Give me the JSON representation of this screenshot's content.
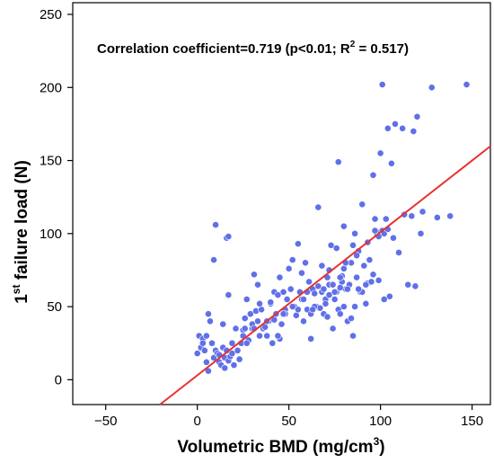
{
  "chart_data": {
    "type": "scatter",
    "annotation": {
      "prefix": "Correlation coefficient=0.719 (p<0.01; R",
      "sup": "2",
      "suffix": " = 0.517)"
    },
    "xlabel": {
      "prefix": "Volumetric BMD (mg/cm",
      "sup": "3",
      "suffix": ")"
    },
    "ylabel": {
      "prefix": "1",
      "sup": "st",
      "suffix": " failure load (N)"
    },
    "xlim": [
      -68,
      160
    ],
    "ylim": [
      -17,
      258
    ],
    "xticks": [
      -50,
      0,
      50,
      100,
      150
    ],
    "yticks": [
      0,
      50,
      100,
      150,
      200,
      250
    ],
    "xtick_labels": [
      "−50",
      "0",
      "50",
      "100",
      "150"
    ],
    "ytick_labels": [
      "0",
      "50",
      "100",
      "150",
      "200",
      "250"
    ],
    "grid": false,
    "colors": {
      "points": "#6070e8",
      "fit_line": "#e8312e"
    },
    "fit_line": {
      "slope": 0.98,
      "intercept": 3
    },
    "x": [
      0,
      1,
      2,
      3,
      4,
      5,
      6,
      6,
      7,
      8,
      9,
      10,
      11,
      12,
      12,
      13,
      14,
      14,
      15,
      15,
      16,
      16,
      17,
      17,
      18,
      19,
      20,
      21,
      22,
      23,
      24,
      25,
      26,
      27,
      28,
      29,
      30,
      30,
      31,
      32,
      33,
      34,
      35,
      36,
      37,
      38,
      39,
      40,
      41,
      42,
      43,
      44,
      45,
      46,
      47,
      48,
      49,
      50,
      51,
      52,
      53,
      54,
      55,
      56,
      57,
      58,
      59,
      60,
      61,
      62,
      63,
      64,
      65,
      66,
      67,
      68,
      69,
      70,
      71,
      72,
      73,
      74,
      75,
      76,
      77,
      78,
      79,
      80,
      81,
      82,
      83,
      84,
      85,
      86,
      87,
      88,
      89,
      90,
      91,
      92,
      93,
      94,
      95,
      96,
      97,
      98,
      99,
      100,
      101,
      102,
      103,
      104,
      105,
      106,
      108,
      110,
      112,
      115,
      117,
      118,
      119,
      120,
      122,
      123,
      128,
      131,
      138,
      147,
      9,
      17,
      10,
      34,
      40,
      42,
      55,
      66,
      71,
      76,
      77,
      80,
      85,
      90,
      96,
      97,
      100,
      101,
      104,
      107,
      60,
      64,
      72,
      75,
      78,
      82,
      88,
      92,
      3,
      5,
      19,
      22,
      25,
      27,
      38,
      44,
      48,
      52,
      57,
      63,
      68,
      72,
      79,
      84,
      86,
      93,
      99,
      33,
      45,
      58,
      69,
      80,
      26,
      31,
      47,
      56,
      62,
      70,
      74,
      78,
      81,
      87,
      102,
      113
    ],
    "y": [
      18,
      30,
      22,
      28,
      20,
      12,
      45,
      6,
      40,
      25,
      15,
      20,
      18,
      12,
      17,
      10,
      22,
      38,
      15,
      8,
      20,
      97,
      58,
      13,
      16,
      25,
      10,
      35,
      20,
      14,
      25,
      30,
      42,
      55,
      27,
      45,
      35,
      38,
      72,
      47,
      40,
      30,
      48,
      35,
      36,
      30,
      40,
      52,
      25,
      60,
      45,
      58,
      28,
      38,
      60,
      48,
      55,
      76,
      62,
      82,
      50,
      44,
      48,
      60,
      73,
      40,
      80,
      48,
      67,
      45,
      62,
      59,
      50,
      64,
      49,
      78,
      45,
      55,
      70,
      65,
      92,
      35,
      55,
      60,
      48,
      45,
      67,
      76,
      62,
      40,
      65,
      80,
      30,
      50,
      70,
      88,
      60,
      60,
      78,
      52,
      66,
      82,
      67,
      72,
      110,
      100,
      68,
      101,
      102,
      100,
      110,
      103,
      57,
      148,
      175,
      87,
      172,
      65,
      112,
      170,
      64,
      180,
      100,
      115,
      200,
      111,
      112,
      202,
      82,
      98,
      106,
      52,
      53,
      41,
      93,
      118,
      43,
      90,
      149,
      105,
      92,
      120,
      140,
      102,
      155,
      202,
      172,
      97,
      60,
      50,
      58,
      60,
      63,
      62,
      62,
      65,
      25,
      30,
      18,
      20,
      34,
      25,
      40,
      30,
      45,
      50,
      55,
      48,
      60,
      75,
      71,
      42,
      100,
      94,
      98,
      65,
      70,
      55,
      62,
      50,
      35,
      35,
      45,
      60,
      28,
      52,
      65,
      70,
      80,
      85,
      55,
      113
    ]
  }
}
